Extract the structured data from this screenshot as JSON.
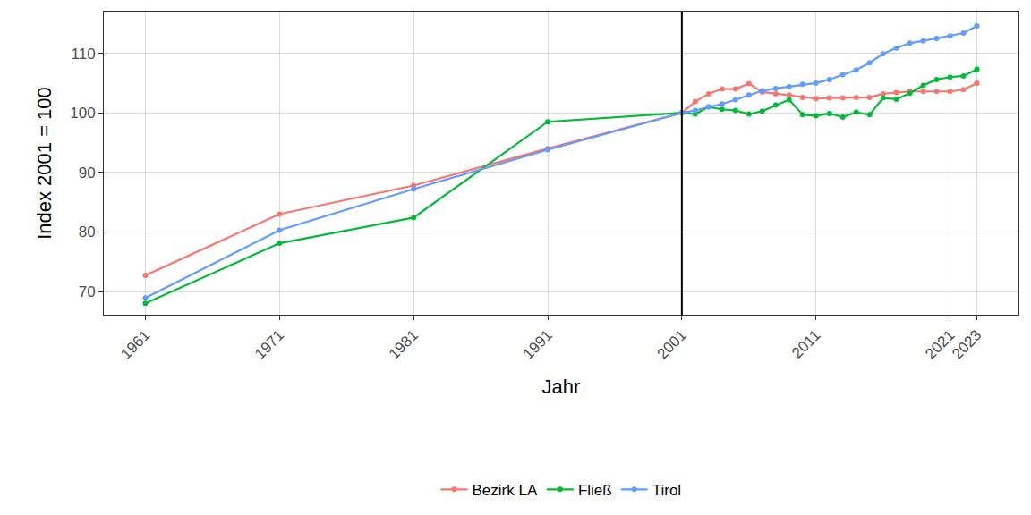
{
  "chart_data": {
    "type": "line",
    "x_label": "Jahr",
    "y_label": "Index 2001 = 100",
    "x": [
      1961,
      1971,
      1981,
      1991,
      2001,
      2002,
      2003,
      2004,
      2005,
      2006,
      2007,
      2008,
      2009,
      2010,
      2011,
      2012,
      2013,
      2014,
      2015,
      2016,
      2017,
      2018,
      2019,
      2020,
      2021,
      2022,
      2023
    ],
    "series": [
      {
        "name": "Bezirk LA",
        "color": "#F8766D",
        "marker": "circle",
        "values": [
          72.7,
          83.0,
          87.8,
          94.0,
          100,
          101.9,
          103.2,
          104.0,
          104.0,
          104.9,
          103.5,
          103.2,
          103.0,
          102.6,
          102.4,
          102.5,
          102.5,
          102.6,
          102.6,
          103.2,
          103.4,
          103.6,
          103.6,
          103.6,
          103.6,
          103.9,
          105.0
        ]
      },
      {
        "name": "Fließ",
        "color": "#00BA38",
        "marker": "circle",
        "values": [
          68.0,
          78.1,
          82.4,
          98.5,
          100,
          99.8,
          101.0,
          100.6,
          100.4,
          99.8,
          100.3,
          101.3,
          102.2,
          99.7,
          99.5,
          99.9,
          99.3,
          100.1,
          99.7,
          102.5,
          102.3,
          103.3,
          104.6,
          105.6,
          106.0,
          106.2,
          107.3
        ]
      },
      {
        "name": "Tirol",
        "color": "#619CFF",
        "marker": "circle",
        "values": [
          68.9,
          80.3,
          87.2,
          93.8,
          100,
          100.4,
          101.0,
          101.5,
          102.2,
          103.0,
          103.7,
          104.1,
          104.4,
          104.8,
          105.0,
          105.6,
          106.4,
          107.2,
          108.4,
          109.9,
          110.9,
          111.7,
          112.1,
          112.5,
          112.9,
          113.4,
          114.6
        ]
      }
    ],
    "xlim": [
      1957.9,
      2026.1
    ],
    "xticks": [
      1961,
      1971,
      1981,
      1991,
      2001,
      2011,
      2021,
      2023
    ],
    "ylim": [
      66.1,
      117.0
    ],
    "yticks": [
      70,
      80,
      90,
      100,
      110
    ],
    "vline": 2001,
    "grid": true,
    "legend": "bottom"
  }
}
